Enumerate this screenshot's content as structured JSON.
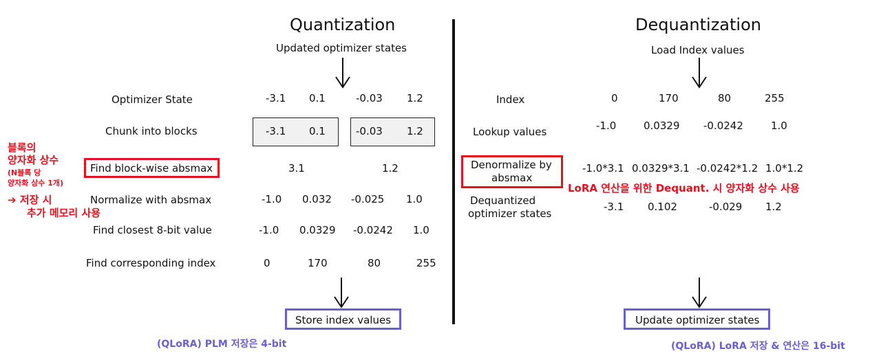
{
  "left": {
    "title": "Quantization",
    "subtitle": "Updated optimizer states",
    "rows": [
      {
        "label": "Optimizer State",
        "values": [
          "-3.1",
          "0.1",
          "-0.03",
          "1.2"
        ]
      },
      {
        "label": "Chunk into blocks",
        "values": [
          "-3.1",
          "0.1",
          "-0.03",
          "1.2"
        ]
      },
      {
        "label": "Find block-wise absmax",
        "values": [
          "3.1",
          "1.2"
        ]
      },
      {
        "label": "Normalize with absmax",
        "values": [
          "-1.0",
          "0.032",
          "-0.025",
          "1.0"
        ]
      },
      {
        "label": "Find closest 8-bit value",
        "values": [
          "-1.0",
          "0.0329",
          "-0.0242",
          "1.0"
        ]
      },
      {
        "label": "Find corresponding index",
        "values": [
          "0",
          "170",
          "80",
          "255"
        ]
      }
    ],
    "store_box": "Store index values",
    "note": "(QLoRA) PLM 저장은 4-bit"
  },
  "right": {
    "title": "Dequantization",
    "subtitle": "Load Index values",
    "rows": [
      {
        "label": "Index",
        "values": [
          "0",
          "170",
          "80",
          "255"
        ]
      },
      {
        "label": "Lookup values",
        "values": [
          "-1.0",
          "0.0329",
          "-0.0242",
          "1.0"
        ]
      },
      {
        "label_line1": "Denormalize by",
        "label_line2": "absmax",
        "values": [
          "-1.0*3.1",
          "0.0329*3.1",
          "-0.0242*1.2",
          "1.0*1.2"
        ]
      },
      {
        "label_line1": "Dequantized",
        "label_line2": "optimizer states",
        "values": [
          "-3.1",
          "0.102",
          "-0.029",
          "1.2"
        ]
      }
    ],
    "red_note": "LoRA 연산을 위한 Dequant. 시 양자화 상수 사용",
    "update_box": "Update optimizer states",
    "note": "(QLoRA) LoRA 저장 & 연산은 16-bit"
  },
  "annotation": {
    "line1": "블록의",
    "line2": "양자화 상수",
    "line3": "(N블록 당",
    "line4": "양자화 상수 1개)",
    "arrow_line": "➔ 저장 시",
    "line6": "추가 메모리 사용"
  },
  "colors": {
    "red": "#e8101e",
    "blue": "#6a5fd0"
  }
}
